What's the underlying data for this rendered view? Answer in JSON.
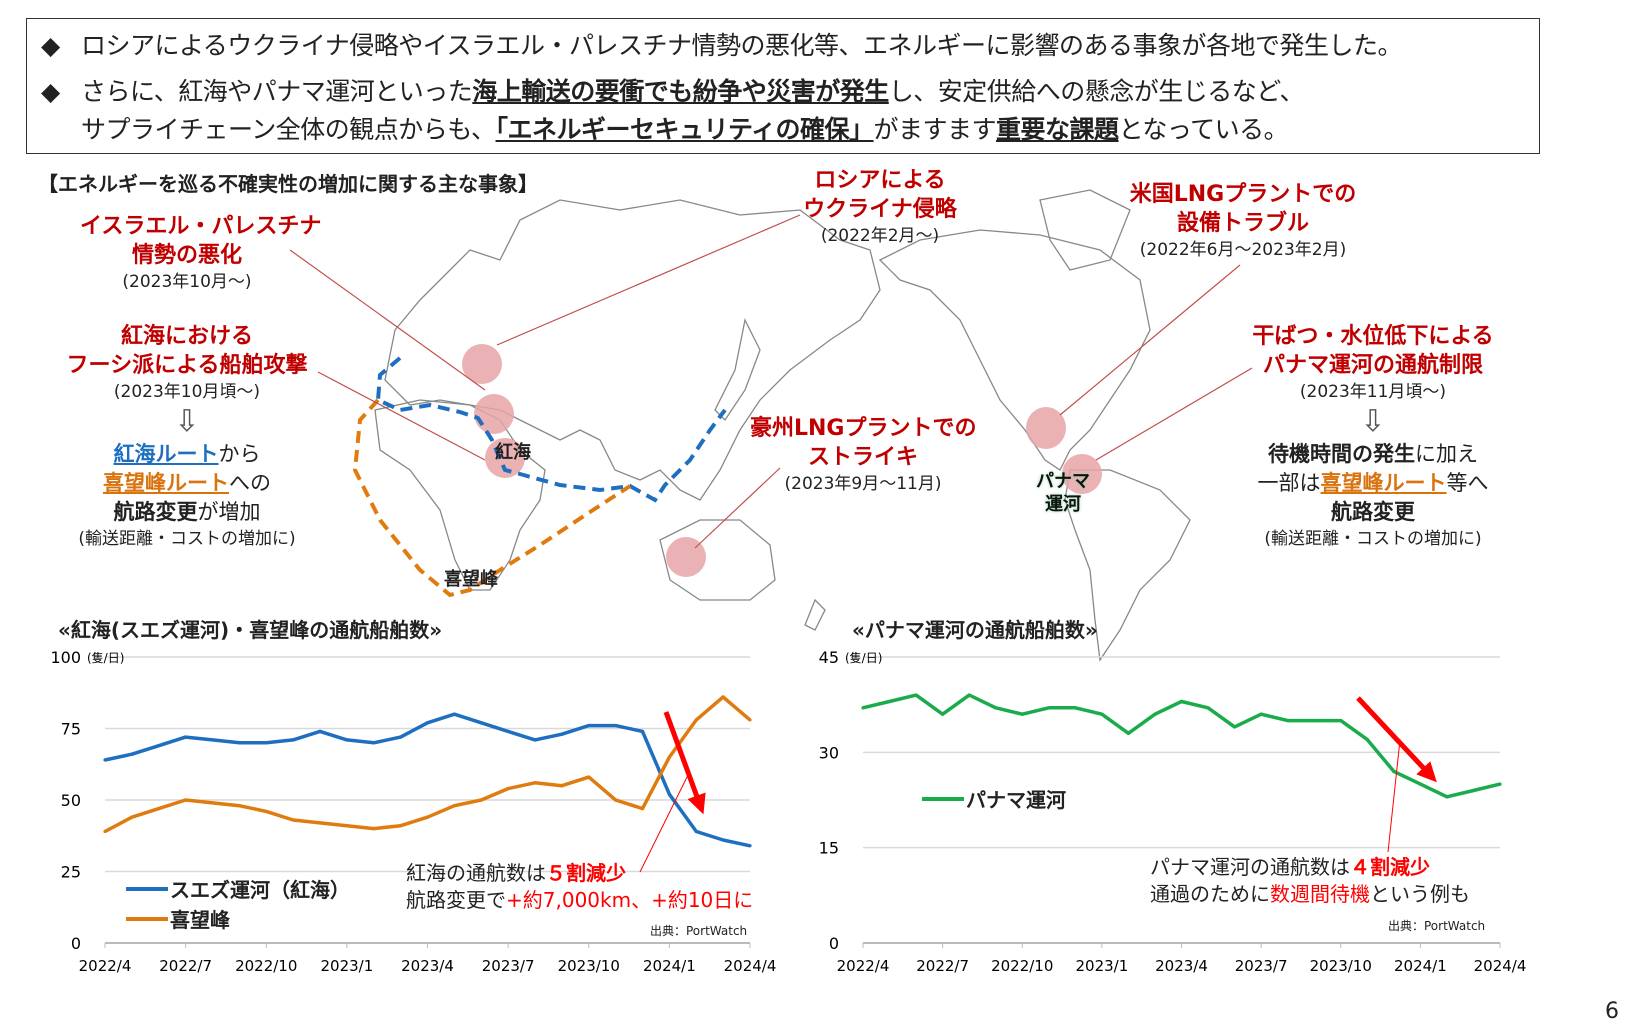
{
  "summary": {
    "bullet_icon": "diamond-bullet",
    "line1": "ロシアによるウクライナ侵略やイスラエル・パレスチナ情勢の悪化等、エネルギーに影響のある事象が各地で発生した。",
    "line2_pre": "さらに、紅海やパナマ運河といった",
    "line2_bold": "海上輸送の要衝でも紛争や災害が発生",
    "line2_post": "し、安定供給への懸念が生じるなど、",
    "line3_pre": "サプライチェーン全体の観点からも、",
    "line3_bold1": "「エネルギーセキュリティの確保」",
    "line3_mid": "がますます",
    "line3_bold2": "重要な課題",
    "line3_post": "となっている。"
  },
  "map": {
    "heading": "【エネルギーを巡る不確実性の増加に関する主な事象】",
    "events": [
      {
        "title1": "イスラエル・パレスチナ",
        "title2": "情勢の悪化",
        "period": "(2023年10月～)"
      },
      {
        "title1": "紅海における",
        "title2": "フーシ派による船舶攻撃",
        "period": "(2023年10月頃～)"
      },
      {
        "title1": "ロシアによる",
        "title2": "ウクライナ侵略",
        "period": "(2022年2月～)"
      },
      {
        "title1": "米国LNGプラントでの",
        "title2": "設備トラブル",
        "period": "(2022年6月～2023年2月)"
      },
      {
        "title1": "干ばつ・水位低下による",
        "title2": "パナマ運河の通航制限",
        "period": "(2023年11月頃～)"
      },
      {
        "title1": "豪州LNGプラントでの",
        "title2": "ストライキ",
        "period": "(2023年9月～11月)"
      }
    ],
    "left_result": {
      "blue": "紅海ルート",
      "a": "から",
      "orange": "喜望峰ルート",
      "b": "への",
      "bold": "航路変更",
      "c": "が増加",
      "note": "(輸送距離・コストの増加に)"
    },
    "right_result": {
      "bold1": "待機時間の発生",
      "a": "に加え",
      "b": "一部は",
      "orange": "喜望峰ルート",
      "c": "等へ",
      "bold2": "航路変更",
      "note": "(輸送距離・コストの増加に)"
    },
    "labels": {
      "red_sea": "紅海",
      "cape": "喜望峰",
      "panama1": "パナマ",
      "panama2": "運河"
    },
    "colors": {
      "red_sea_route": "#1f6fc0",
      "cape_route": "#d9730d",
      "event_marker": "#e8a5a8",
      "callout_text": "#c00000"
    }
  },
  "chart_data": [
    {
      "type": "line",
      "title": "«紅海(スエズ運河)・喜望峰の通航船舶数»",
      "unit": "(隻/日)",
      "ylim": [
        0,
        100
      ],
      "yticks": [
        "0",
        "25",
        "50",
        "75",
        "100"
      ],
      "xticks": [
        "2022/4",
        "2022/7",
        "2022/10",
        "2023/1",
        "2023/4",
        "2023/7",
        "2023/10",
        "2024/1",
        "2024/4"
      ],
      "x": [
        "2022/4",
        "2022/5",
        "2022/6",
        "2022/7",
        "2022/8",
        "2022/9",
        "2022/10",
        "2022/11",
        "2022/12",
        "2023/1",
        "2023/2",
        "2023/3",
        "2023/4",
        "2023/5",
        "2023/6",
        "2023/7",
        "2023/8",
        "2023/9",
        "2023/10",
        "2023/11",
        "2023/12",
        "2024/1",
        "2024/2",
        "2024/3",
        "2024/4"
      ],
      "grid": true,
      "legend_position": "bottom-left",
      "series": [
        {
          "name": "スエズ運河（紅海）",
          "color": "#1f6fc0",
          "values": [
            64,
            66,
            69,
            72,
            71,
            70,
            70,
            71,
            74,
            71,
            70,
            72,
            77,
            80,
            77,
            74,
            71,
            73,
            76,
            76,
            74,
            52,
            39,
            36,
            34
          ]
        },
        {
          "name": "喜望峰",
          "color": "#e07b10",
          "values": [
            39,
            44,
            47,
            50,
            49,
            48,
            46,
            43,
            42,
            41,
            40,
            41,
            44,
            48,
            50,
            54,
            56,
            55,
            58,
            50,
            47,
            65,
            78,
            86,
            78
          ]
        }
      ],
      "annotation": {
        "l1_pre": "紅海の通航数は",
        "l1_red": "５割減少",
        "l2_pre": "航路変更で",
        "l2_red": "+約7,000km、+約10日に"
      },
      "source": "出典：PortWatch"
    },
    {
      "type": "line",
      "title": "«パナマ運河の通航船舶数»",
      "unit": "(隻/日)",
      "ylim": [
        0,
        45
      ],
      "yticks": [
        "0",
        "15",
        "30",
        "45"
      ],
      "xticks": [
        "2022/4",
        "2022/7",
        "2022/10",
        "2023/1",
        "2023/4",
        "2023/7",
        "2023/10",
        "2024/1",
        "2024/4"
      ],
      "x": [
        "2022/4",
        "2022/5",
        "2022/6",
        "2022/7",
        "2022/8",
        "2022/9",
        "2022/10",
        "2022/11",
        "2022/12",
        "2023/1",
        "2023/2",
        "2023/3",
        "2023/4",
        "2023/5",
        "2023/6",
        "2023/7",
        "2023/8",
        "2023/9",
        "2023/10",
        "2023/11",
        "2023/12",
        "2024/1",
        "2024/2",
        "2024/3",
        "2024/4"
      ],
      "grid": true,
      "legend_position": "left",
      "series": [
        {
          "name": "パナマ運河",
          "color": "#1aab4b",
          "values": [
            37,
            38,
            39,
            36,
            39,
            37,
            36,
            37,
            37,
            36,
            33,
            36,
            38,
            37,
            34,
            36,
            35,
            35,
            35,
            32,
            27,
            25,
            23,
            24,
            25
          ]
        }
      ],
      "annotation": {
        "l1_pre": "パナマ運河の通航数は",
        "l1_red": "４割減少",
        "l2_pre": "通過のために",
        "l2_red": "数週間待機",
        "l2_post": "という例も"
      },
      "source": "出典：PortWatch"
    }
  ],
  "page_number": "6"
}
